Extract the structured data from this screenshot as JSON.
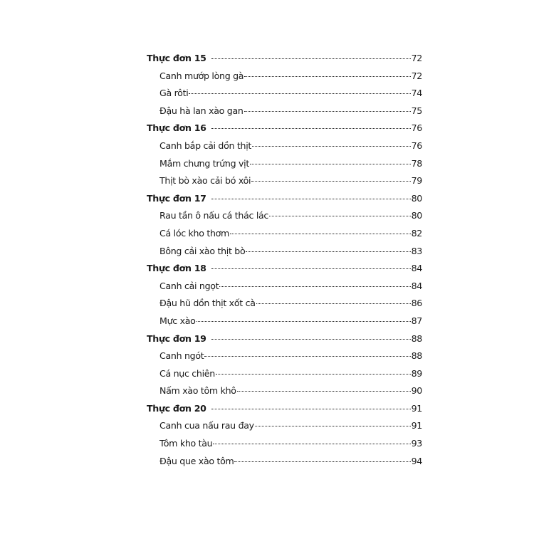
{
  "toc": [
    {
      "type": "section",
      "label": "Thực đơn 15",
      "page": "72"
    },
    {
      "type": "item",
      "label": "Canh mướp lòng gà",
      "page": "72"
    },
    {
      "type": "item",
      "label": "Gà rôti",
      "page": "74"
    },
    {
      "type": "item",
      "label": "Đậu hà lan xào gan",
      "page": "75"
    },
    {
      "type": "section",
      "label": "Thực đơn 16",
      "page": "76"
    },
    {
      "type": "item",
      "label": "Canh bắp cải dồn thịt",
      "page": "76"
    },
    {
      "type": "item",
      "label": "Mắm chưng trứng vịt",
      "page": "78"
    },
    {
      "type": "item",
      "label": "Thịt bò xào cải bó xôi",
      "page": "79"
    },
    {
      "type": "section",
      "label": "Thực đơn 17",
      "page": "80"
    },
    {
      "type": "item",
      "label": "Rau tần ô nấu cá thác lác",
      "page": "80"
    },
    {
      "type": "item",
      "label": "Cá lóc kho thơm",
      "page": "82"
    },
    {
      "type": "item",
      "label": "Bông cải xào thịt bò",
      "page": "83"
    },
    {
      "type": "section",
      "label": "Thực đơn 18",
      "page": "84"
    },
    {
      "type": "item",
      "label": "Canh cải ngọt",
      "page": "84"
    },
    {
      "type": "item",
      "label": "Đậu hũ dồn thịt xốt cà",
      "page": "86"
    },
    {
      "type": "item",
      "label": "Mực xào",
      "page": "87"
    },
    {
      "type": "section",
      "label": "Thực đơn 19",
      "page": "88"
    },
    {
      "type": "item",
      "label": "Canh ngót",
      "page": "88"
    },
    {
      "type": "item",
      "label": "Cá nục chiên",
      "page": "89"
    },
    {
      "type": "item",
      "label": "Nấm xào tôm khô",
      "page": "90"
    },
    {
      "type": "section",
      "label": "Thực đơn 20",
      "page": "91"
    },
    {
      "type": "item",
      "label": "Canh cua nấu rau đay",
      "page": "91"
    },
    {
      "type": "item",
      "label": "Tôm kho tàu",
      "page": "93"
    },
    {
      "type": "item",
      "label": "Đậu que xào tôm",
      "page": "94"
    }
  ]
}
